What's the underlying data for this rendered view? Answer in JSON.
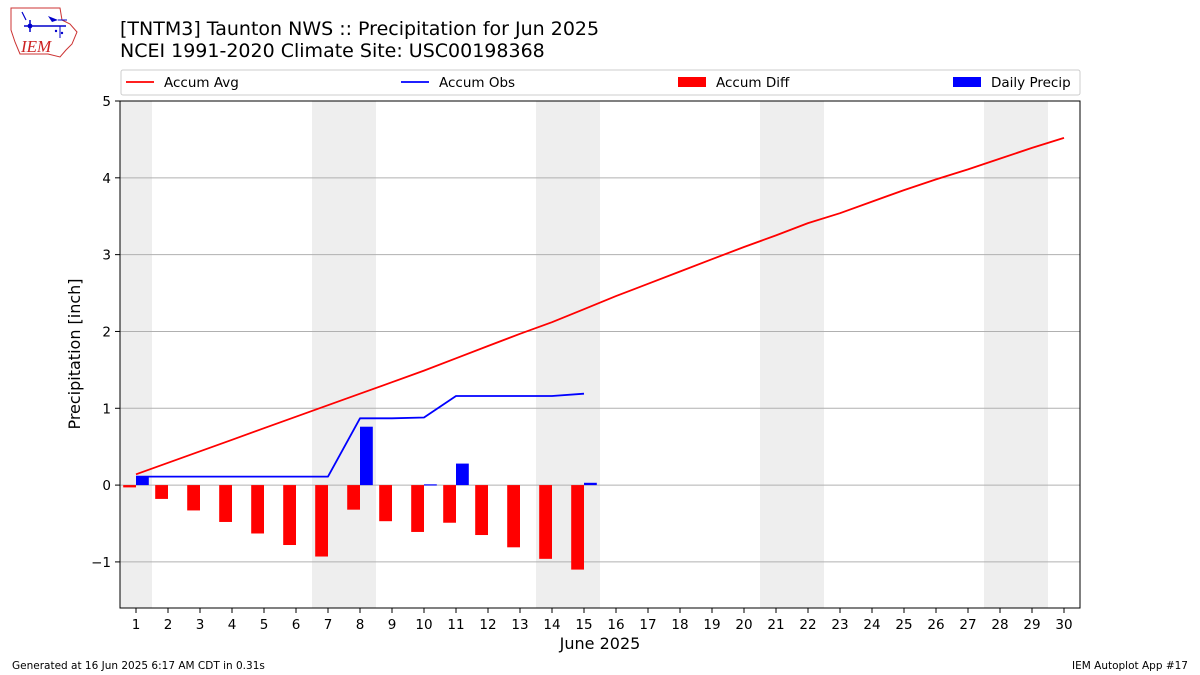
{
  "logo_text": "IEM",
  "colors": {
    "avg": "#ff0000",
    "obs": "#0000ff",
    "diff": "#ff0000",
    "precip": "#0000ff",
    "weekend": "#eeeeee",
    "grid": "#b0b0b0"
  },
  "footer": {
    "generated": "Generated at 16 Jun 2025 6:17 AM CDT in 0.31s",
    "app": "IEM Autoplot App #17"
  },
  "chart_data": {
    "type": "bar",
    "title": "[TNTM3] Taunton NWS :: Precipitation for Jun 2025",
    "subtitle": "NCEI 1991-2020 Climate Site: USC00198368",
    "xlabel": "June 2025",
    "ylabel": "Precipitation [inch]",
    "ylim": [
      -1.6,
      5.0
    ],
    "xlim": [
      0.5,
      30.5
    ],
    "yticks": [
      -1,
      0,
      1,
      2,
      3,
      4,
      5
    ],
    "ytick_labels": [
      "−1",
      "0",
      "1",
      "2",
      "3",
      "4",
      "5"
    ],
    "xticks": [
      1,
      2,
      3,
      4,
      5,
      6,
      7,
      8,
      9,
      10,
      11,
      12,
      13,
      14,
      15,
      16,
      17,
      18,
      19,
      20,
      21,
      22,
      23,
      24,
      25,
      26,
      27,
      28,
      29,
      30
    ],
    "grid": "horizontal",
    "weekends": [
      [
        0.5,
        1.5
      ],
      [
        6.5,
        8.5
      ],
      [
        13.5,
        15.5
      ],
      [
        20.5,
        22.5
      ],
      [
        27.5,
        29.5
      ]
    ],
    "legend": {
      "position": "top",
      "entries": [
        {
          "label": "Accum Avg",
          "kind": "line",
          "series": "accum_avg"
        },
        {
          "label": "Accum Obs",
          "kind": "line",
          "series": "accum_obs"
        },
        {
          "label": "Accum Diff",
          "kind": "bar",
          "series": "accum_diff"
        },
        {
          "label": "Daily Precip",
          "kind": "bar",
          "series": "daily_precip"
        }
      ]
    },
    "series": [
      {
        "name": "Accum Avg",
        "key": "accum_avg",
        "type": "line",
        "x": [
          1,
          2,
          3,
          4,
          5,
          6,
          7,
          8,
          9,
          10,
          11,
          12,
          13,
          14,
          15,
          16,
          17,
          18,
          19,
          20,
          21,
          22,
          23,
          24,
          25,
          26,
          27,
          28,
          29,
          30
        ],
        "values": [
          0.14,
          0.29,
          0.44,
          0.59,
          0.74,
          0.89,
          1.04,
          1.19,
          1.34,
          1.49,
          1.65,
          1.81,
          1.97,
          2.12,
          2.29,
          2.46,
          2.62,
          2.78,
          2.94,
          3.1,
          3.25,
          3.41,
          3.54,
          3.69,
          3.84,
          3.98,
          4.11,
          4.25,
          4.39,
          4.52
        ]
      },
      {
        "name": "Accum Obs",
        "key": "accum_obs",
        "type": "line",
        "x": [
          1,
          2,
          3,
          4,
          5,
          6,
          7,
          8,
          9,
          10,
          11,
          12,
          13,
          14,
          15
        ],
        "values": [
          0.11,
          0.11,
          0.11,
          0.11,
          0.11,
          0.11,
          0.11,
          0.87,
          0.87,
          0.88,
          1.16,
          1.16,
          1.16,
          1.16,
          1.19
        ]
      },
      {
        "name": "Accum Diff",
        "key": "accum_diff",
        "type": "bar",
        "x": [
          1,
          2,
          3,
          4,
          5,
          6,
          7,
          8,
          9,
          10,
          11,
          12,
          13,
          14,
          15
        ],
        "values": [
          -0.03,
          -0.18,
          -0.33,
          -0.48,
          -0.63,
          -0.78,
          -0.93,
          -0.32,
          -0.47,
          -0.61,
          -0.49,
          -0.65,
          -0.81,
          -0.96,
          -1.1
        ]
      },
      {
        "name": "Daily Precip",
        "key": "daily_precip",
        "type": "bar",
        "x": [
          1,
          2,
          3,
          4,
          5,
          6,
          7,
          8,
          9,
          10,
          11,
          12,
          13,
          14,
          15
        ],
        "values": [
          0.11,
          0.0,
          0.0,
          0.0,
          0.0,
          0.0,
          0.0,
          0.76,
          0.0,
          0.01,
          0.28,
          0.0,
          0.0,
          0.0,
          0.03
        ]
      }
    ]
  }
}
